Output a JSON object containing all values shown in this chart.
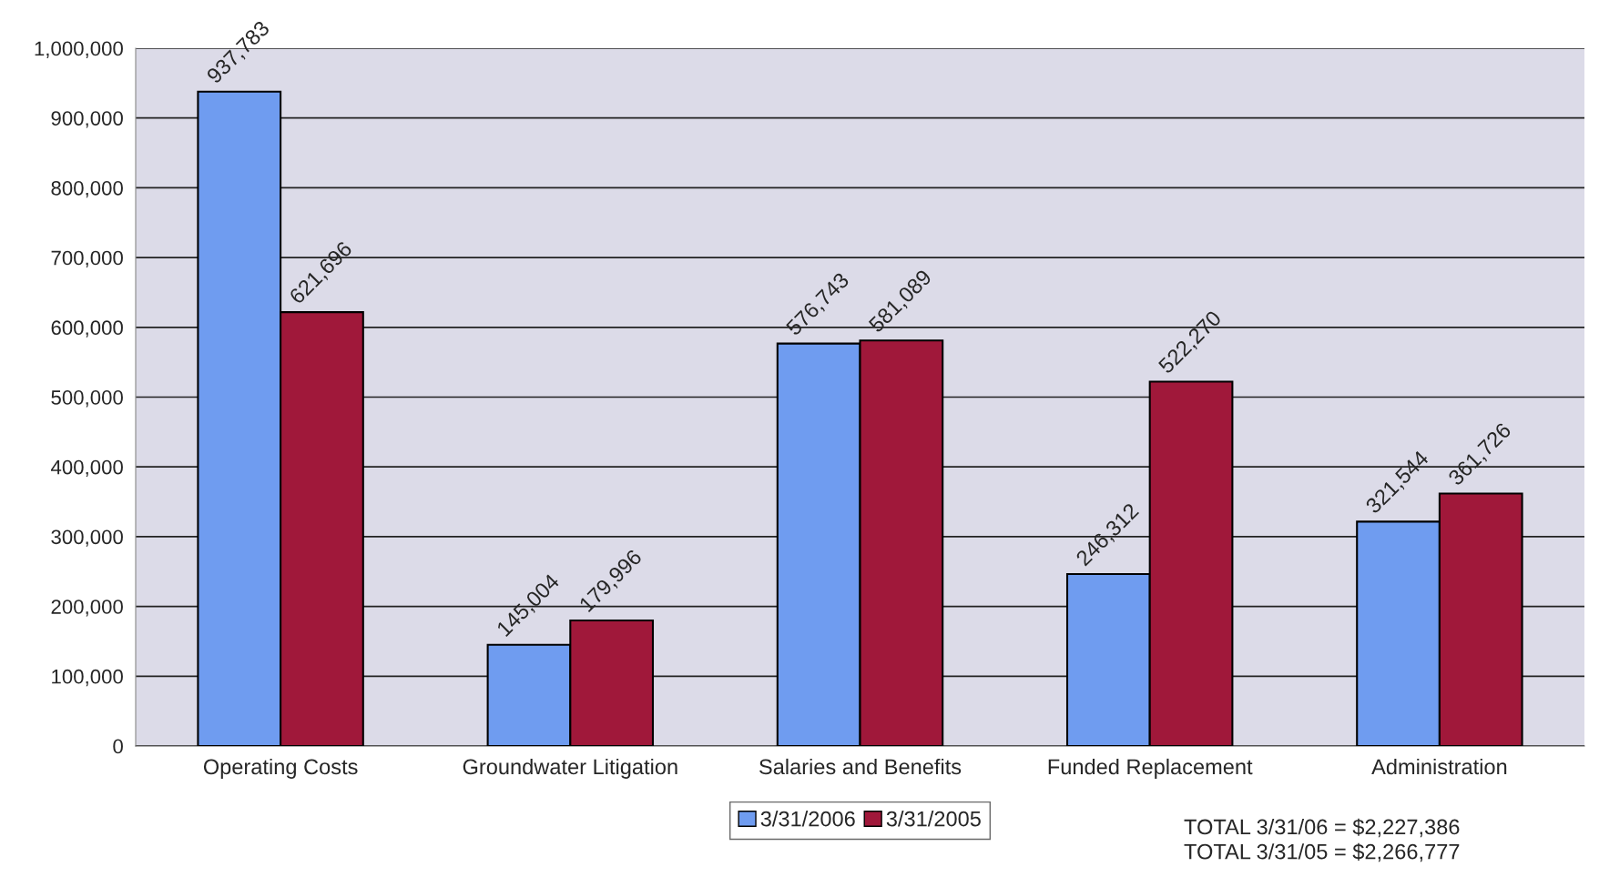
{
  "chart_data": {
    "type": "bar",
    "categories": [
      "Operating Costs",
      "Groundwater Litigation",
      "Salaries and Benefits",
      "Funded Replacement",
      "Administration"
    ],
    "series": [
      {
        "name": "3/31/2006",
        "color": "#6f9cf0",
        "values": [
          937783,
          145004,
          576743,
          246312,
          321544
        ],
        "value_labels": [
          "937,783",
          "145,004",
          "576,743",
          "246,312",
          "321,544"
        ]
      },
      {
        "name": "3/31/2005",
        "color": "#a0183a",
        "values": [
          621696,
          179996,
          581089,
          522270,
          361726
        ],
        "value_labels": [
          "621,696",
          "179,996",
          "581,089",
          "522,270",
          "361,726"
        ]
      }
    ],
    "ylim": [
      0,
      1000000
    ],
    "yticks": [
      0,
      {
        "value": 100000,
        "label": "100,000"
      },
      {
        "value": 200000,
        "label": "200,000"
      },
      {
        "value": 300000,
        "label": "300,000"
      },
      {
        "value": 400000,
        "label": "400,000"
      },
      {
        "value": 500000,
        "label": "500,000"
      },
      {
        "value": 600000,
        "label": "600,000"
      },
      {
        "value": 700000,
        "label": "700,000"
      },
      {
        "value": 800000,
        "label": "800,000"
      },
      {
        "value": 900000,
        "label": "900,000"
      },
      {
        "value": 1000000,
        "label": "1,000,000"
      }
    ],
    "grid": "y",
    "legend": "bottom",
    "annotations": [
      "TOTAL 3/31/06 = $2,227,386\nTOTAL 3/31/05 = $2,266,777"
    ]
  }
}
